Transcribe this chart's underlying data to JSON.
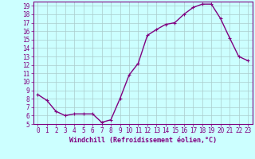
{
  "x": [
    0,
    1,
    2,
    3,
    4,
    5,
    6,
    7,
    8,
    9,
    10,
    11,
    12,
    13,
    14,
    15,
    16,
    17,
    18,
    19,
    20,
    21,
    22,
    23
  ],
  "y": [
    8.5,
    7.8,
    6.5,
    6.0,
    6.2,
    6.2,
    6.2,
    5.2,
    5.5,
    8.0,
    10.8,
    12.2,
    15.5,
    16.2,
    16.8,
    17.0,
    18.0,
    18.8,
    19.2,
    19.2,
    17.5,
    15.2,
    13.0,
    12.5
  ],
  "line_color": "#800080",
  "marker": "+",
  "marker_size": 3,
  "bg_color": "#ccffff",
  "grid_color": "#aacccc",
  "xlabel": "Windchill (Refroidissement éolien,°C)",
  "ylabel": "",
  "xlim": [
    -0.5,
    23.5
  ],
  "ylim": [
    5,
    19.5
  ],
  "yticks": [
    5,
    6,
    7,
    8,
    9,
    10,
    11,
    12,
    13,
    14,
    15,
    16,
    17,
    18,
    19
  ],
  "xticks": [
    0,
    1,
    2,
    3,
    4,
    5,
    6,
    7,
    8,
    9,
    10,
    11,
    12,
    13,
    14,
    15,
    16,
    17,
    18,
    19,
    20,
    21,
    22,
    23
  ],
  "tick_color": "#800080",
  "label_color": "#800080",
  "axis_color": "#800080",
  "xlabel_fontsize": 6,
  "tick_fontsize": 5.5,
  "line_width": 1.0
}
